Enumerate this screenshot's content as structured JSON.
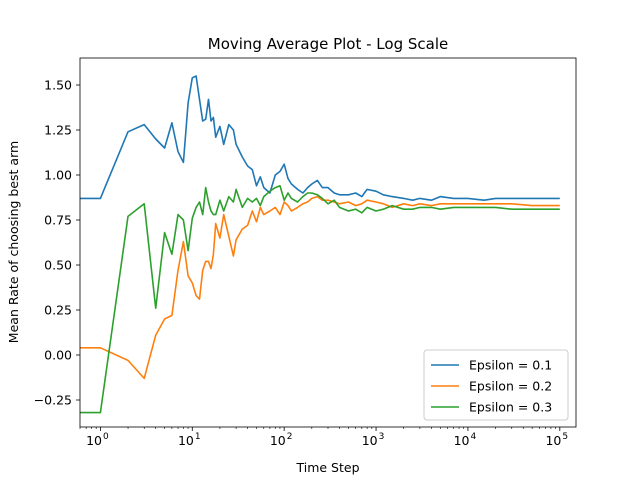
{
  "chart_data": {
    "type": "line",
    "title": "Moving Average Plot - Log Scale",
    "xlabel": "Time Step",
    "ylabel": "Mean Rate of choosing best arm",
    "xscale": "log",
    "xlim": [
      0.6,
      150000
    ],
    "ylim": [
      -0.4,
      1.65
    ],
    "x_ticks": [
      {
        "value": 1,
        "base": "10",
        "exp": "0"
      },
      {
        "value": 10,
        "base": "10",
        "exp": "1"
      },
      {
        "value": 100,
        "base": "10",
        "exp": "2"
      },
      {
        "value": 1000,
        "base": "10",
        "exp": "3"
      },
      {
        "value": 10000,
        "base": "10",
        "exp": "4"
      },
      {
        "value": 100000,
        "base": "10",
        "exp": "5"
      }
    ],
    "y_ticks": [
      {
        "value": -0.25,
        "label": "−0.25"
      },
      {
        "value": 0.0,
        "label": "0.00"
      },
      {
        "value": 0.25,
        "label": "0.25"
      },
      {
        "value": 0.5,
        "label": "0.50"
      },
      {
        "value": 0.75,
        "label": "0.75"
      },
      {
        "value": 1.0,
        "label": "1.00"
      },
      {
        "value": 1.25,
        "label": "1.25"
      },
      {
        "value": 1.5,
        "label": "1.50"
      }
    ],
    "grid": false,
    "legend_position": "lower-right",
    "series": [
      {
        "name": "Epsilon = 0.1",
        "color": "#1f77b4",
        "x": [
          0.6,
          1,
          2,
          3,
          4,
          5,
          6,
          7,
          8,
          9,
          10,
          11,
          12,
          13,
          14,
          15,
          16,
          17,
          18,
          20,
          22,
          25,
          28,
          30,
          35,
          40,
          45,
          50,
          55,
          60,
          70,
          80,
          90,
          100,
          110,
          120,
          140,
          160,
          180,
          200,
          230,
          260,
          300,
          350,
          400,
          500,
          600,
          700,
          800,
          1000,
          1200,
          1500,
          2000,
          2500,
          3000,
          4000,
          5000,
          7000,
          10000,
          15000,
          20000,
          30000,
          50000,
          70000,
          100000
        ],
        "y": [
          0.87,
          0.87,
          1.24,
          1.28,
          1.2,
          1.15,
          1.29,
          1.13,
          1.07,
          1.4,
          1.54,
          1.55,
          1.42,
          1.3,
          1.31,
          1.42,
          1.3,
          1.32,
          1.21,
          1.27,
          1.17,
          1.28,
          1.25,
          1.17,
          1.1,
          1.05,
          1.03,
          0.94,
          0.99,
          0.93,
          0.9,
          1.0,
          1.02,
          1.06,
          0.98,
          0.95,
          0.92,
          0.9,
          0.93,
          0.95,
          0.97,
          0.93,
          0.93,
          0.9,
          0.89,
          0.89,
          0.9,
          0.88,
          0.92,
          0.91,
          0.89,
          0.88,
          0.87,
          0.86,
          0.87,
          0.86,
          0.88,
          0.87,
          0.87,
          0.86,
          0.87,
          0.87,
          0.87,
          0.87,
          0.87
        ]
      },
      {
        "name": "Epsilon = 0.2",
        "color": "#ff7f0e",
        "x": [
          0.6,
          1,
          2,
          3,
          4,
          5,
          6,
          7,
          8,
          9,
          10,
          11,
          12,
          13,
          14,
          15,
          16,
          17,
          18,
          20,
          22,
          25,
          28,
          30,
          35,
          40,
          45,
          50,
          55,
          60,
          70,
          80,
          90,
          100,
          110,
          120,
          140,
          160,
          180,
          200,
          230,
          260,
          300,
          350,
          400,
          500,
          600,
          700,
          800,
          1000,
          1200,
          1500,
          2000,
          2500,
          3000,
          4000,
          5000,
          7000,
          10000,
          15000,
          20000,
          30000,
          50000,
          70000,
          100000
        ],
        "y": [
          0.04,
          0.04,
          -0.03,
          -0.13,
          0.11,
          0.2,
          0.22,
          0.47,
          0.63,
          0.44,
          0.4,
          0.33,
          0.31,
          0.47,
          0.52,
          0.52,
          0.48,
          0.56,
          0.73,
          0.65,
          0.78,
          0.66,
          0.55,
          0.64,
          0.7,
          0.72,
          0.8,
          0.74,
          0.82,
          0.78,
          0.8,
          0.82,
          0.78,
          0.85,
          0.83,
          0.8,
          0.82,
          0.84,
          0.85,
          0.87,
          0.88,
          0.86,
          0.86,
          0.85,
          0.84,
          0.85,
          0.83,
          0.84,
          0.86,
          0.85,
          0.84,
          0.82,
          0.84,
          0.83,
          0.84,
          0.83,
          0.84,
          0.84,
          0.84,
          0.84,
          0.84,
          0.84,
          0.83,
          0.83,
          0.83
        ]
      },
      {
        "name": "Epsilon = 0.3",
        "color": "#2ca02c",
        "x": [
          0.6,
          1,
          2,
          3,
          4,
          5,
          6,
          7,
          8,
          9,
          10,
          11,
          12,
          13,
          14,
          15,
          16,
          17,
          18,
          20,
          22,
          25,
          28,
          30,
          35,
          40,
          45,
          50,
          55,
          60,
          70,
          80,
          90,
          100,
          110,
          120,
          140,
          160,
          180,
          200,
          230,
          260,
          300,
          350,
          400,
          500,
          600,
          700,
          800,
          1000,
          1200,
          1500,
          2000,
          2500,
          3000,
          4000,
          5000,
          7000,
          10000,
          15000,
          20000,
          30000,
          50000,
          70000,
          100000
        ],
        "y": [
          -0.32,
          -0.32,
          0.77,
          0.84,
          0.26,
          0.68,
          0.56,
          0.78,
          0.75,
          0.58,
          0.76,
          0.82,
          0.85,
          0.78,
          0.93,
          0.85,
          0.8,
          0.78,
          0.78,
          0.86,
          0.8,
          0.88,
          0.85,
          0.92,
          0.82,
          0.87,
          0.85,
          0.87,
          0.83,
          0.88,
          0.91,
          0.93,
          0.94,
          0.86,
          0.9,
          0.87,
          0.85,
          0.88,
          0.9,
          0.9,
          0.89,
          0.87,
          0.84,
          0.86,
          0.82,
          0.8,
          0.81,
          0.79,
          0.82,
          0.8,
          0.81,
          0.83,
          0.81,
          0.81,
          0.82,
          0.82,
          0.81,
          0.82,
          0.82,
          0.82,
          0.82,
          0.81,
          0.81,
          0.81,
          0.81
        ]
      }
    ]
  }
}
